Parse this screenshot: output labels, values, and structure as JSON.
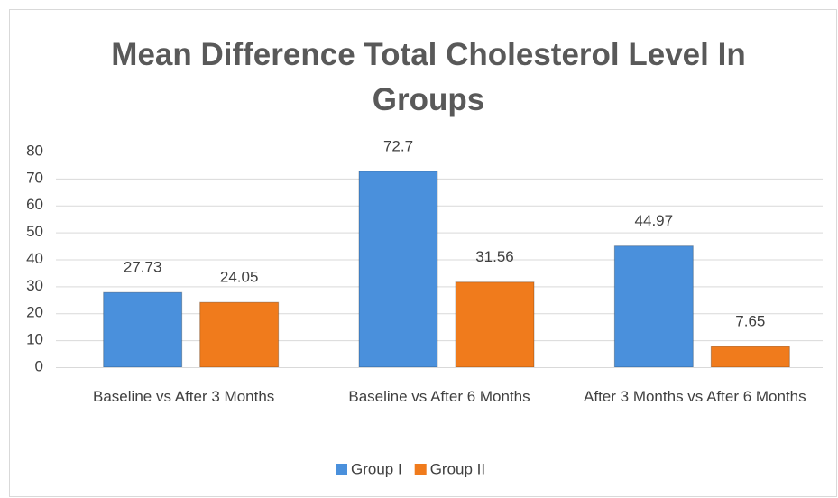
{
  "chart_data": {
    "type": "bar",
    "title": "Mean Difference Total Cholesterol Level In Groups",
    "categories": [
      "Baseline vs After 3 Months",
      "Baseline vs After 6 Months",
      "After 3 Months vs After 6 Months"
    ],
    "series": [
      {
        "name": "Group I",
        "color": "#4a90dc",
        "values": [
          27.73,
          72.7,
          44.97
        ]
      },
      {
        "name": "Group II",
        "color": "#f07b1c",
        "values": [
          24.05,
          31.56,
          7.65
        ]
      }
    ],
    "ylim": [
      0,
      80
    ],
    "yticks": [
      0,
      10,
      20,
      30,
      40,
      50,
      60,
      70,
      80
    ],
    "grid": true,
    "legend": "bottom"
  }
}
